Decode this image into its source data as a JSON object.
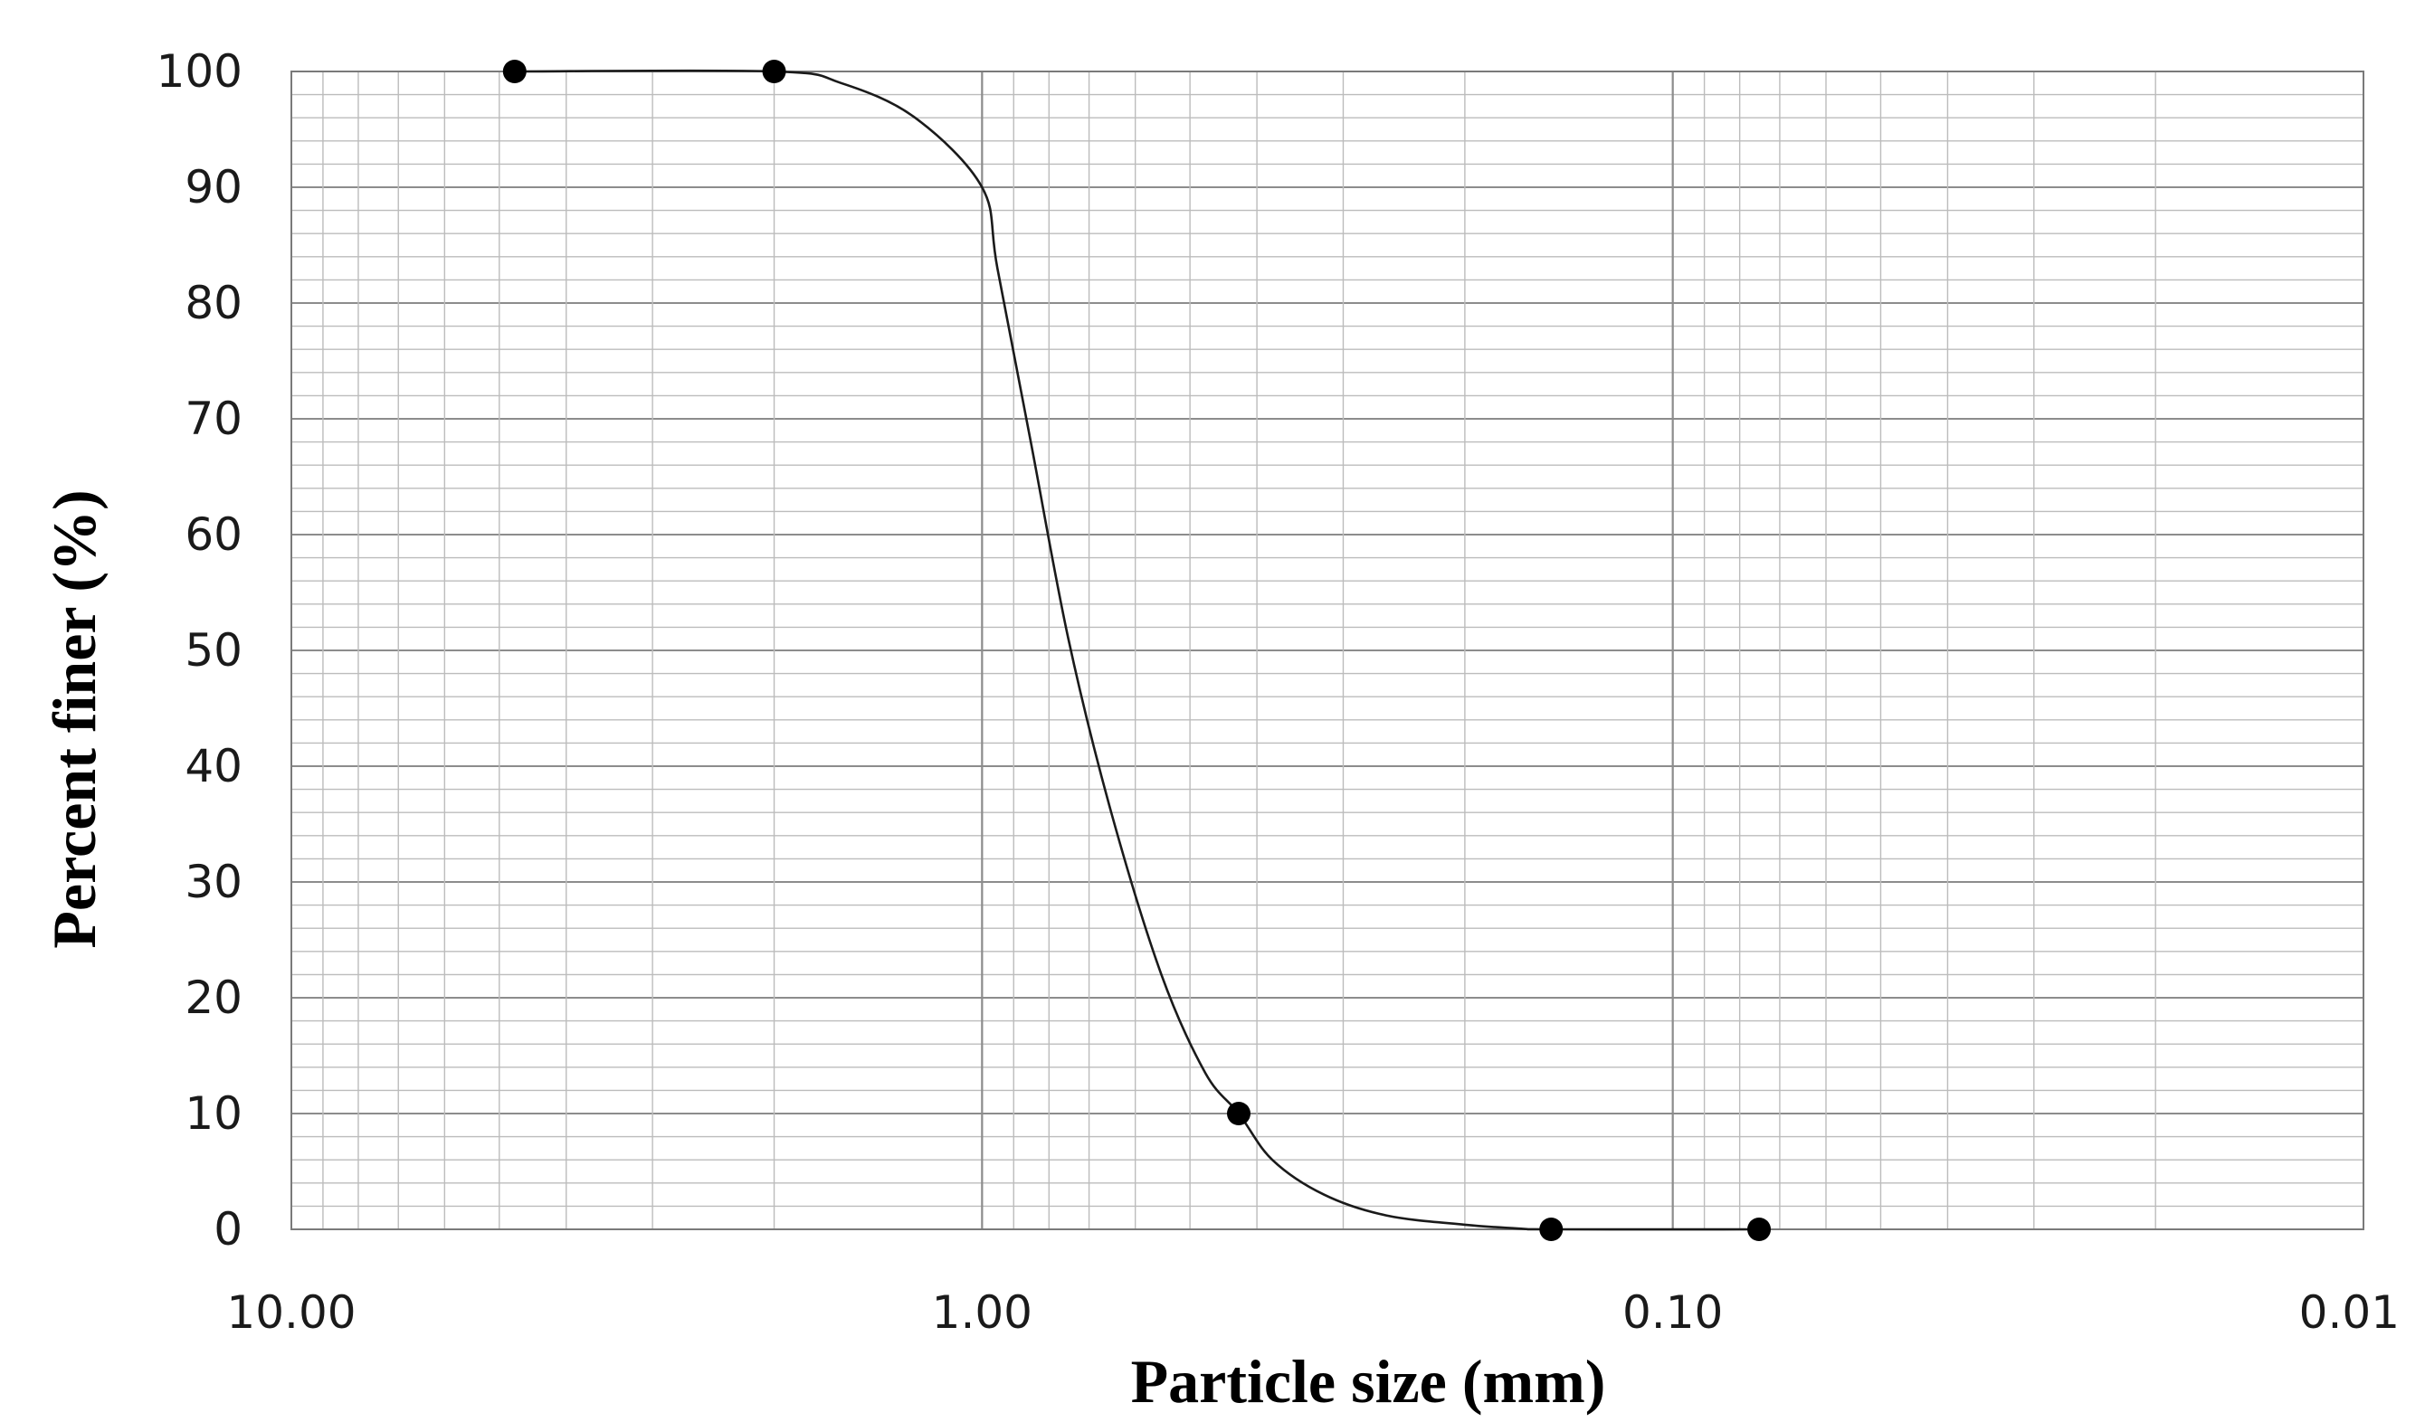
{
  "chart_data": {
    "type": "line",
    "title": "",
    "xlabel": "Particle size (mm)",
    "ylabel": "Percent finer (%)",
    "x_scale": "log",
    "x_reversed": true,
    "xlim": [
      10,
      0.01
    ],
    "ylim": [
      0,
      100
    ],
    "x_ticks": [
      10,
      1,
      0.1,
      0.01
    ],
    "x_tick_labels": [
      "10.00",
      "1.00",
      "0.10",
      "0.01"
    ],
    "y_ticks": [
      0,
      10,
      20,
      30,
      40,
      50,
      60,
      70,
      80,
      90,
      100
    ],
    "y_tick_labels": [
      "0",
      "10",
      "20",
      "30",
      "40",
      "50",
      "60",
      "70",
      "80",
      "90",
      "100"
    ],
    "grid": true,
    "legend": false,
    "series": [
      {
        "x": [
          4.75,
          2.0,
          0.425,
          0.15,
          0.075
        ],
        "y": [
          100,
          100,
          10,
          0,
          0
        ],
        "curve": {
          "x": [
            4.75,
            2.0,
            1.6,
            1.25,
            1.0,
            0.95,
            0.85,
            0.75,
            0.65,
            0.55,
            0.475,
            0.425,
            0.38,
            0.32,
            0.26,
            0.2,
            0.165,
            0.15,
            0.075
          ],
          "y": [
            100,
            100,
            99,
            96,
            90,
            83,
            68,
            51,
            36,
            22,
            13.5,
            10,
            6,
            3,
            1.2,
            0.4,
            0.05,
            0,
            0
          ]
        }
      }
    ],
    "colors": {
      "line": "#1a1a1a",
      "marker": "#000000",
      "grid": "#bcbcbc",
      "major_grid": "#8c8c8c"
    }
  }
}
